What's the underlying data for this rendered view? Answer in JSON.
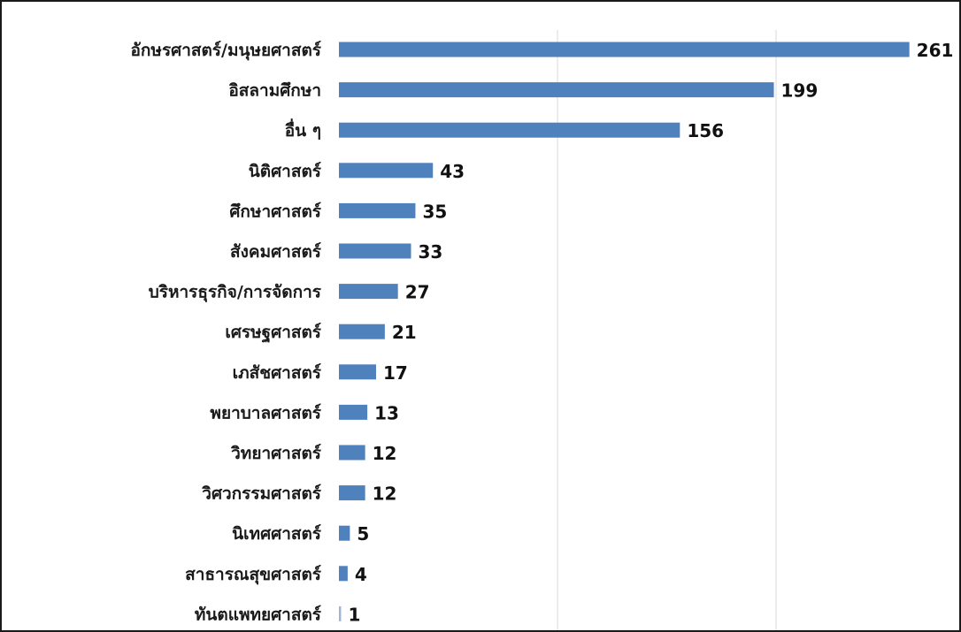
{
  "chart_data": {
    "type": "bar",
    "orientation": "horizontal",
    "categories": [
      "อักษรศาสตร์/มนุษยศาสตร์",
      "อิสลามศึกษา",
      "อื่น ๆ",
      "นิติศาสตร์",
      "ศึกษาศาสตร์",
      "สังคมศาสตร์",
      "บริหารธุรกิจ/การจัดการ",
      "เศรษฐศาสตร์",
      "เภสัชศาสตร์",
      "พยาบาลศาสตร์",
      "วิทยาศาสตร์",
      "วิศวกรรมศาสตร์",
      "นิเทศศาสตร์",
      "สาธารณสุขศาสตร์",
      "ทันตแพทยศาสตร์"
    ],
    "values": [
      261,
      199,
      156,
      43,
      35,
      33,
      27,
      21,
      17,
      13,
      12,
      12,
      5,
      4,
      1
    ],
    "xlim": [
      0,
      260
    ],
    "grid": true,
    "bar_color": "#4f81bd",
    "data_labels": true,
    "legend": "none"
  }
}
